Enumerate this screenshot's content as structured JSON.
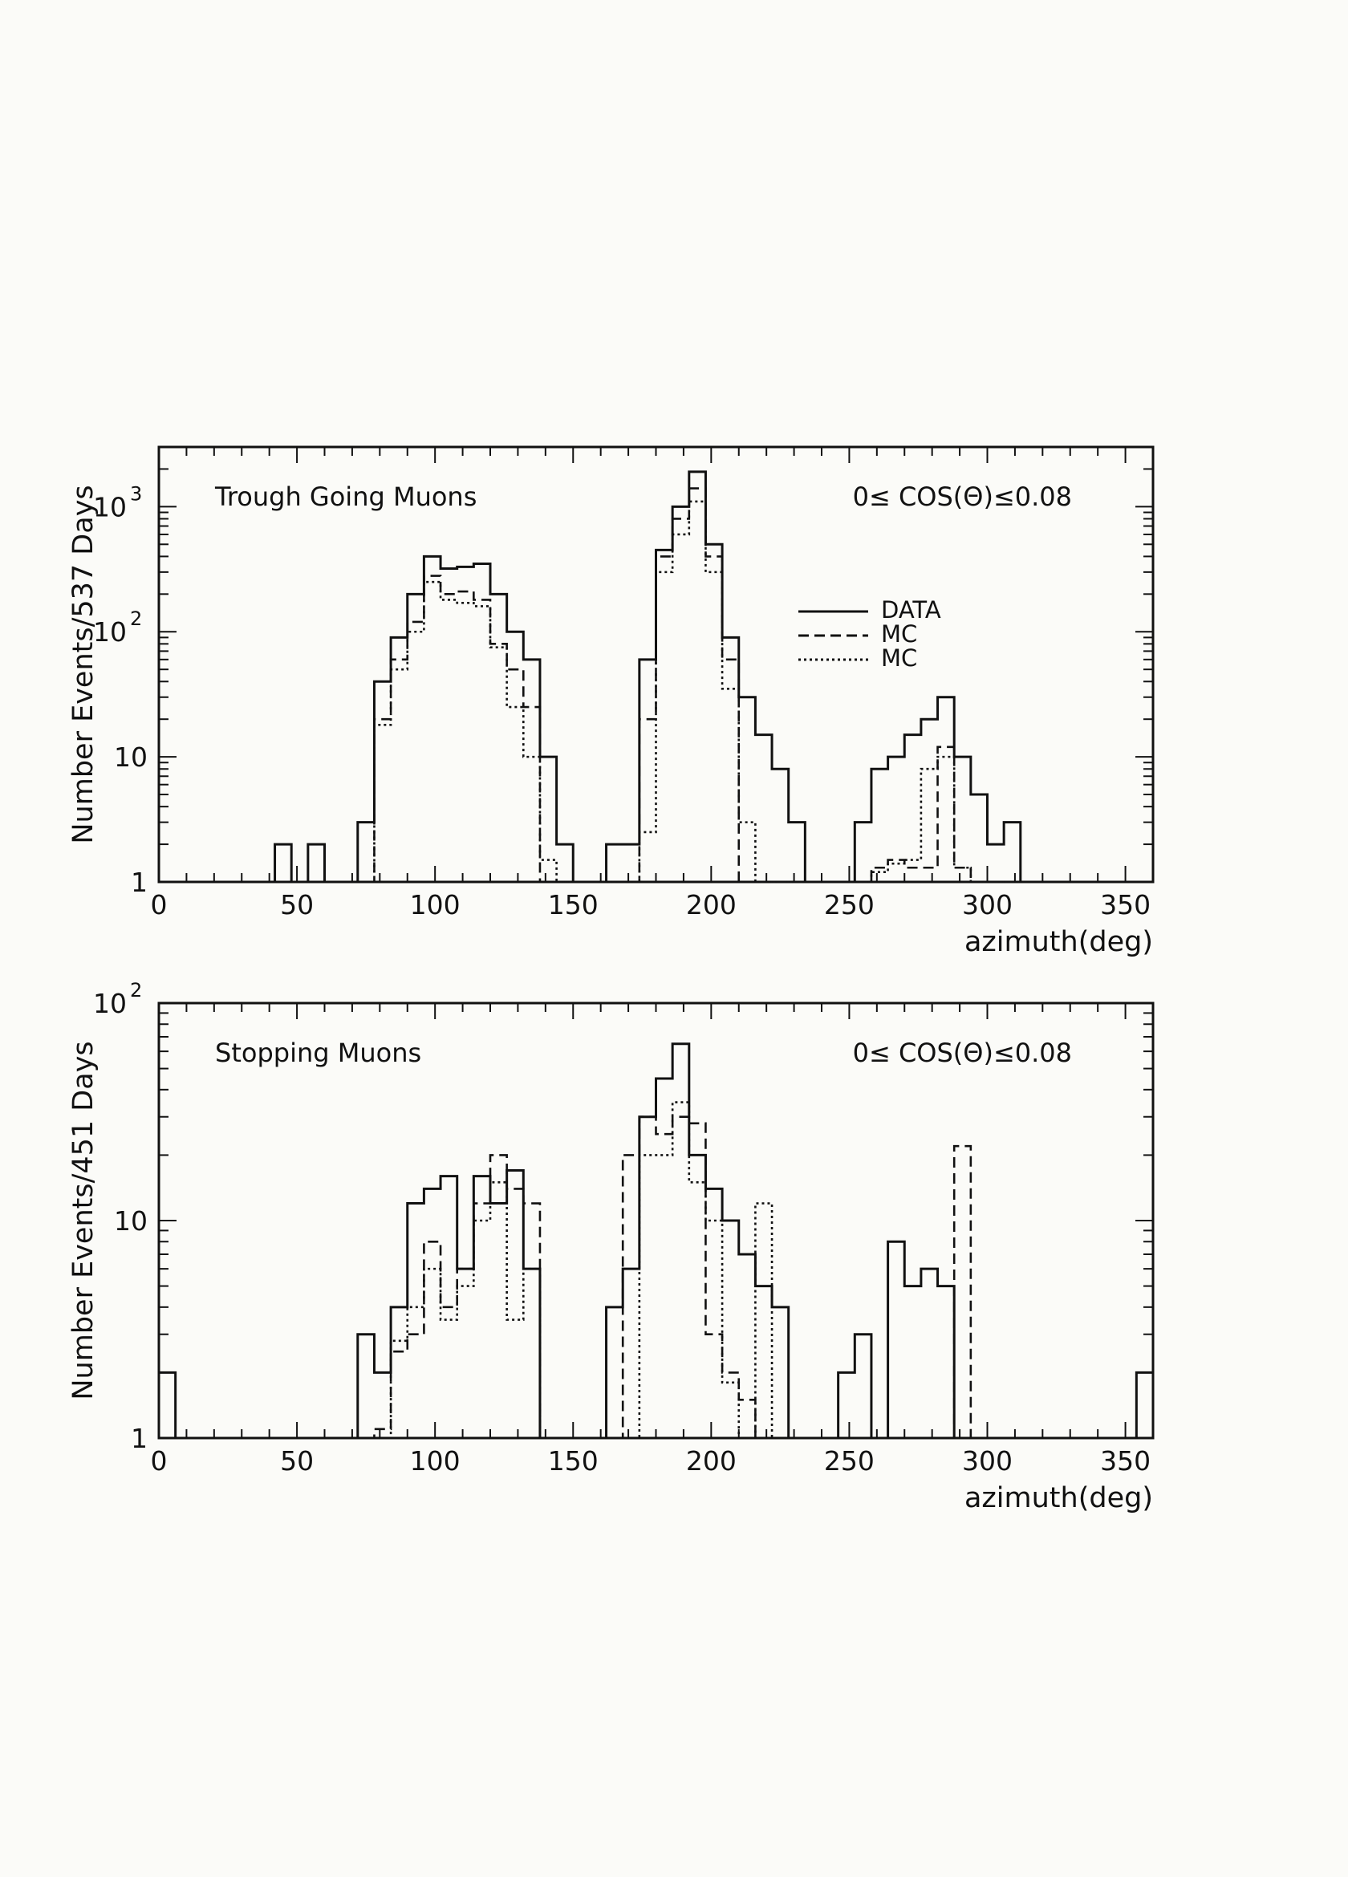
{
  "chart_data": [
    {
      "type": "histogram",
      "panel_label": "Trough Going Muons",
      "cut_label": "0≤ COS(Θ)≤0.08",
      "xlabel": "azimuth(deg)",
      "ylabel": "Number Events/537 Days",
      "xlim": [
        0,
        360
      ],
      "ylim": [
        1,
        3000
      ],
      "yscale": "log",
      "x_ticks": [
        "0",
        "50",
        "100",
        "150",
        "200",
        "250",
        "300",
        "350"
      ],
      "y_ticks": [
        {
          "value": 1,
          "label": "1"
        },
        {
          "value": 10,
          "label": "10"
        },
        {
          "value": 100,
          "label": "10",
          "exp": "2"
        },
        {
          "value": 1000,
          "label": "10",
          "exp": "3"
        }
      ],
      "legend": [
        {
          "label": "DATA",
          "style": "solid"
        },
        {
          "label": "MC",
          "style": "dashed"
        },
        {
          "label": "MC",
          "style": "dotted"
        }
      ],
      "bin_edges": [
        0,
        6,
        12,
        18,
        24,
        30,
        36,
        42,
        48,
        54,
        60,
        66,
        72,
        78,
        84,
        90,
        96,
        102,
        108,
        114,
        120,
        126,
        132,
        138,
        144,
        150,
        156,
        162,
        168,
        174,
        180,
        186,
        192,
        198,
        204,
        210,
        216,
        222,
        228,
        234,
        240,
        246,
        252,
        258,
        264,
        270,
        276,
        282,
        288,
        294,
        300,
        306,
        312,
        318,
        324,
        330,
        336,
        342,
        348,
        354,
        360
      ],
      "series": [
        {
          "name": "DATA",
          "style": "solid",
          "values": [
            1,
            1,
            1,
            1,
            1,
            1,
            1,
            2,
            1,
            2,
            1,
            1,
            3,
            40,
            90,
            200,
            400,
            320,
            330,
            350,
            200,
            100,
            60,
            10,
            2,
            1,
            1,
            2,
            2,
            60,
            450,
            1000,
            1900,
            500,
            90,
            30,
            15,
            8,
            3,
            1,
            1,
            1,
            3,
            8,
            10,
            15,
            20,
            30,
            10,
            5,
            2,
            3,
            1,
            1,
            1,
            1,
            1,
            1,
            1,
            1
          ]
        },
        {
          "name": "MC",
          "style": "dashed",
          "values": [
            1,
            1,
            1,
            1,
            1,
            1,
            1,
            1,
            1,
            1,
            1,
            1,
            1,
            20,
            60,
            120,
            280,
            200,
            210,
            180,
            80,
            50,
            25,
            1,
            1,
            1,
            1,
            1,
            1,
            20,
            400,
            800,
            1400,
            400,
            60,
            1,
            1,
            1,
            1,
            1,
            1,
            1,
            1,
            1.3,
            1.5,
            1.3,
            1.3,
            12,
            1.3,
            1,
            1,
            1,
            1,
            1,
            1,
            1,
            1,
            1,
            1,
            1
          ]
        },
        {
          "name": "MC",
          "style": "dotted",
          "values": [
            1,
            1,
            1,
            1,
            1,
            1,
            1,
            1,
            1,
            1,
            1,
            1,
            1,
            18,
            50,
            100,
            250,
            180,
            170,
            160,
            75,
            25,
            10,
            1.5,
            1,
            1,
            1,
            1,
            1,
            2.5,
            300,
            600,
            1100,
            300,
            35,
            3,
            1,
            1,
            1,
            1,
            1,
            1,
            1,
            1.2,
            1.4,
            1.5,
            8,
            10,
            1.3,
            1,
            1,
            1,
            1,
            1,
            1,
            1,
            1,
            1,
            1,
            1
          ]
        }
      ]
    },
    {
      "type": "histogram",
      "panel_label": "Stopping Muons",
      "cut_label": "0≤ COS(Θ)≤0.08",
      "xlabel": "azimuth(deg)",
      "ylabel": "Number Events/451 Days",
      "xlim": [
        0,
        360
      ],
      "ylim": [
        1,
        100
      ],
      "yscale": "log",
      "x_ticks": [
        "0",
        "50",
        "100",
        "150",
        "200",
        "250",
        "300",
        "350"
      ],
      "y_ticks": [
        {
          "value": 1,
          "label": "1"
        },
        {
          "value": 10,
          "label": "10"
        },
        {
          "value": 100,
          "label": "10",
          "exp": "2"
        }
      ],
      "bin_edges": [
        0,
        6,
        12,
        18,
        24,
        30,
        36,
        42,
        48,
        54,
        60,
        66,
        72,
        78,
        84,
        90,
        96,
        102,
        108,
        114,
        120,
        126,
        132,
        138,
        144,
        150,
        156,
        162,
        168,
        174,
        180,
        186,
        192,
        198,
        204,
        210,
        216,
        222,
        228,
        234,
        240,
        246,
        252,
        258,
        264,
        270,
        276,
        282,
        288,
        294,
        300,
        306,
        312,
        318,
        324,
        330,
        336,
        342,
        348,
        354,
        360
      ],
      "series": [
        {
          "name": "DATA",
          "style": "solid",
          "values": [
            2,
            1,
            1,
            1,
            1,
            1,
            1,
            1,
            1,
            1,
            1,
            1,
            3,
            2,
            4,
            12,
            14,
            16,
            6,
            16,
            12,
            17,
            6,
            1,
            1,
            1,
            1,
            4,
            6,
            30,
            45,
            65,
            20,
            14,
            10,
            7,
            5,
            4,
            1,
            1,
            1,
            2,
            3,
            1,
            8,
            5,
            6,
            5,
            1,
            1,
            1,
            1,
            1,
            1,
            1,
            1,
            1,
            1,
            1,
            2
          ]
        },
        {
          "name": "MC",
          "style": "dashed",
          "values": [
            1,
            1,
            1,
            1,
            1,
            1,
            1,
            1,
            1,
            1,
            1,
            1,
            1,
            1.1,
            2.5,
            3,
            8,
            4,
            6,
            12,
            20,
            14,
            12,
            1,
            1,
            1,
            1,
            1,
            20,
            30,
            25,
            30,
            28,
            3,
            2,
            1.5,
            1,
            1,
            1,
            1,
            1,
            1,
            1,
            1,
            1,
            1,
            1,
            1,
            22,
            1,
            1,
            1,
            1,
            1,
            1,
            1,
            1,
            1,
            1,
            1
          ]
        },
        {
          "name": "MC",
          "style": "dotted",
          "values": [
            1,
            1,
            1,
            1,
            1,
            1,
            1,
            1,
            1,
            1,
            1,
            1,
            1,
            1,
            2.8,
            4,
            6,
            3.5,
            5,
            10,
            15,
            3.5,
            6,
            1,
            1,
            1,
            1,
            1,
            1,
            20,
            20,
            35,
            15,
            10,
            1.8,
            1,
            12,
            1,
            1,
            1,
            1,
            1,
            1,
            1,
            1,
            1,
            1,
            1,
            1,
            1,
            1,
            1,
            1,
            1,
            1,
            1,
            1,
            1,
            1,
            1
          ]
        }
      ]
    }
  ],
  "colors": {
    "ink": "#111111",
    "paper": "#fbfbf8"
  }
}
